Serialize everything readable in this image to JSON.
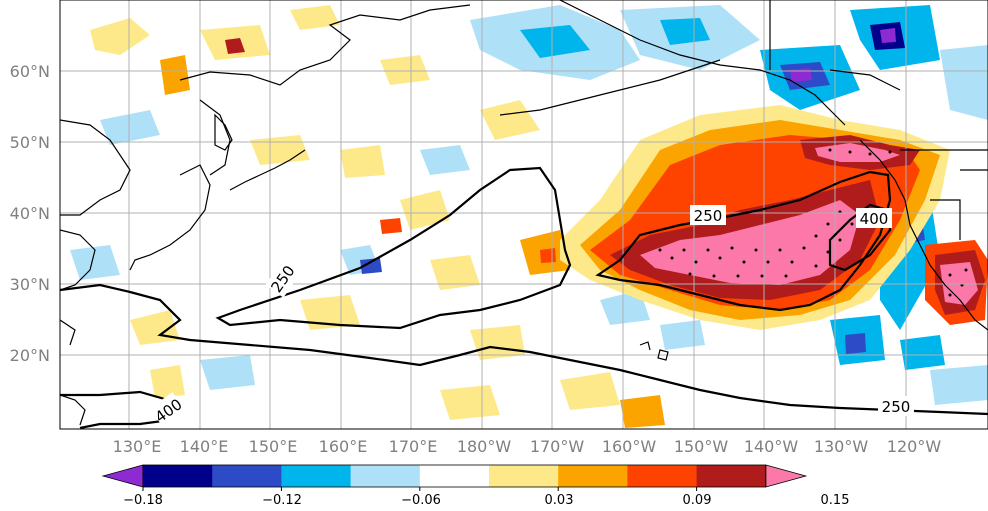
{
  "map": {
    "lat_labels": [
      "60°N",
      "50°N",
      "40°N",
      "30°N",
      "20°N"
    ],
    "lon_labels": [
      "130°E",
      "140°E",
      "150°E",
      "160°E",
      "170°E",
      "180°W",
      "170°W",
      "160°W",
      "150°W",
      "140°W",
      "130°W",
      "120°W"
    ],
    "contour_labels": [
      "250",
      "250",
      "400",
      "250",
      "400"
    ]
  },
  "colorbar": {
    "tick_labels": [
      "−0.18",
      "−0.12",
      "−0.06",
      "0.03",
      "0.09",
      "0.15"
    ],
    "colors": [
      "#8e2ad1",
      "#00008b",
      "#2e4bc7",
      "#00b4ec",
      "#aee0f8",
      "#ffffff",
      "#fde98a",
      "#fba400",
      "#fe4200",
      "#b01c1c",
      "#fb78a8"
    ]
  },
  "colors": {
    "land_outline": "#000000",
    "grid": "#b0b0b0",
    "axis_label": "#808080"
  }
}
